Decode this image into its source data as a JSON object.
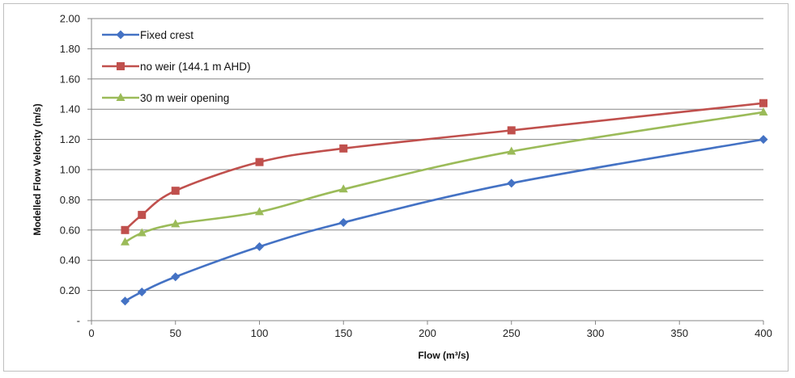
{
  "chart_data": {
    "type": "line",
    "title": "",
    "xlabel": "Flow (m³/s)",
    "ylabel": "Modelled Flow Velocity (m/s)",
    "xlim": [
      0,
      400
    ],
    "ylim": [
      0,
      2.0
    ],
    "x_ticks": [
      0,
      50,
      100,
      150,
      200,
      250,
      300,
      350,
      400
    ],
    "y_ticks": [
      0,
      0.2,
      0.4,
      0.6,
      0.8,
      1.0,
      1.2,
      1.4,
      1.6,
      1.8,
      2.0
    ],
    "y_tick_labels": [
      "-",
      "0.20",
      "0.40",
      "0.60",
      "0.80",
      "1.00",
      "1.20",
      "1.40",
      "1.60",
      "1.80",
      "2.00"
    ],
    "grid": "horizontal",
    "legend_position": "top-left",
    "series": [
      {
        "name": "Fixed crest",
        "color": "#4472C4",
        "marker": "diamond",
        "x": [
          20,
          30,
          50,
          100,
          150,
          250,
          400
        ],
        "y": [
          0.13,
          0.19,
          0.29,
          0.49,
          0.65,
          0.91,
          1.2
        ]
      },
      {
        "name": "no weir (144.1 m AHD)",
        "color": "#C0504D",
        "marker": "square",
        "x": [
          20,
          30,
          50,
          100,
          150,
          250,
          400
        ],
        "y": [
          0.6,
          0.7,
          0.86,
          1.05,
          1.14,
          1.26,
          1.44
        ]
      },
      {
        "name": "30 m weir opening",
        "color": "#9BBB59",
        "marker": "triangle",
        "x": [
          20,
          30,
          50,
          100,
          150,
          250,
          400
        ],
        "y": [
          0.52,
          0.58,
          0.64,
          0.72,
          0.87,
          1.12,
          1.38
        ]
      }
    ]
  }
}
